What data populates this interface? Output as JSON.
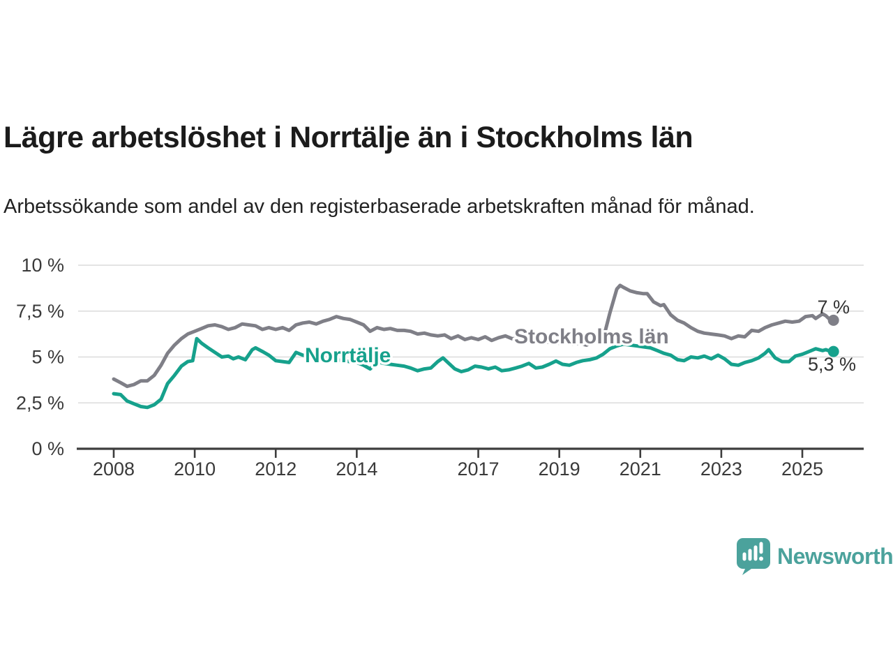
{
  "title": "Lägre arbetslöshet i Norrtälje än i Stockholms län",
  "subtitle": "Arbetssökande som andel av den registerbaserade arbetskraften månad för månad.",
  "branding": {
    "logo_text": "Newsworthy",
    "logo_icon": "speech-bubble-bar-chart-icon",
    "logo_color": "#4ba29c"
  },
  "chart_data": {
    "type": "line",
    "title": "Lägre arbetslöshet i Norrtälje än i Stockholms län",
    "subtitle": "Arbetssökande som andel av den registerbaserade arbetskraften månad för månad.",
    "x_unit": "decimal_year_monthly",
    "ylim": [
      0,
      10
    ],
    "xlim": [
      2007.9,
      2026.3
    ],
    "grid": "horizontal",
    "legend_position": "inline-labels-on-lines",
    "yticks": [
      {
        "value": 0,
        "label": "0 %"
      },
      {
        "value": 2.5,
        "label": "2,5 %"
      },
      {
        "value": 5,
        "label": "5 %"
      },
      {
        "value": 7.5,
        "label": "7,5 %"
      },
      {
        "value": 10,
        "label": "10 %"
      }
    ],
    "xticks": [
      {
        "value": 2008,
        "label": "2008"
      },
      {
        "value": 2010,
        "label": "2010"
      },
      {
        "value": 2012,
        "label": "2012"
      },
      {
        "value": 2014,
        "label": "2014"
      },
      {
        "value": 2017,
        "label": "2017"
      },
      {
        "value": 2019,
        "label": "2019"
      },
      {
        "value": 2021,
        "label": "2021"
      },
      {
        "value": 2023,
        "label": "2023"
      },
      {
        "value": 2025,
        "label": "2025"
      }
    ],
    "series": [
      {
        "name": "Stockholms län",
        "color": "#7f7f87",
        "end_value": 7.0,
        "end_label": "7 %",
        "points": [
          [
            2008.0,
            3.8
          ],
          [
            2008.17,
            3.6
          ],
          [
            2008.33,
            3.4
          ],
          [
            2008.5,
            3.5
          ],
          [
            2008.67,
            3.7
          ],
          [
            2008.83,
            3.7
          ],
          [
            2009.0,
            4.0
          ],
          [
            2009.17,
            4.55
          ],
          [
            2009.33,
            5.2
          ],
          [
            2009.5,
            5.65
          ],
          [
            2009.67,
            6.0
          ],
          [
            2009.83,
            6.25
          ],
          [
            2010.0,
            6.4
          ],
          [
            2010.17,
            6.55
          ],
          [
            2010.33,
            6.7
          ],
          [
            2010.5,
            6.75
          ],
          [
            2010.67,
            6.65
          ],
          [
            2010.83,
            6.5
          ],
          [
            2011.0,
            6.6
          ],
          [
            2011.17,
            6.8
          ],
          [
            2011.33,
            6.75
          ],
          [
            2011.5,
            6.7
          ],
          [
            2011.67,
            6.5
          ],
          [
            2011.83,
            6.6
          ],
          [
            2012.0,
            6.5
          ],
          [
            2012.17,
            6.6
          ],
          [
            2012.33,
            6.45
          ],
          [
            2012.5,
            6.75
          ],
          [
            2012.67,
            6.85
          ],
          [
            2012.83,
            6.9
          ],
          [
            2013.0,
            6.8
          ],
          [
            2013.17,
            6.95
          ],
          [
            2013.33,
            7.05
          ],
          [
            2013.5,
            7.2
          ],
          [
            2013.67,
            7.1
          ],
          [
            2013.83,
            7.05
          ],
          [
            2014.0,
            6.9
          ],
          [
            2014.17,
            6.75
          ],
          [
            2014.33,
            6.4
          ],
          [
            2014.5,
            6.6
          ],
          [
            2014.67,
            6.5
          ],
          [
            2014.83,
            6.55
          ],
          [
            2015.0,
            6.45
          ],
          [
            2015.17,
            6.45
          ],
          [
            2015.33,
            6.4
          ],
          [
            2015.5,
            6.25
          ],
          [
            2015.67,
            6.3
          ],
          [
            2015.83,
            6.2
          ],
          [
            2016.0,
            6.15
          ],
          [
            2016.17,
            6.2
          ],
          [
            2016.33,
            6.0
          ],
          [
            2016.5,
            6.15
          ],
          [
            2016.67,
            5.95
          ],
          [
            2016.83,
            6.05
          ],
          [
            2017.0,
            5.95
          ],
          [
            2017.17,
            6.1
          ],
          [
            2017.33,
            5.9
          ],
          [
            2017.5,
            6.05
          ],
          [
            2017.67,
            6.15
          ],
          [
            2017.83,
            6.0
          ],
          [
            2018.0,
            6.0
          ],
          [
            2018.17,
            5.9
          ],
          [
            2018.33,
            5.85
          ],
          [
            2018.5,
            5.9
          ],
          [
            2018.67,
            5.8
          ],
          [
            2018.83,
            5.85
          ],
          [
            2019.0,
            5.75
          ],
          [
            2019.17,
            5.8
          ],
          [
            2019.33,
            5.7
          ],
          [
            2019.5,
            5.75
          ],
          [
            2019.67,
            5.65
          ],
          [
            2019.83,
            5.8
          ],
          [
            2020.0,
            5.9
          ],
          [
            2020.08,
            5.95
          ],
          [
            2020.25,
            7.4
          ],
          [
            2020.42,
            8.7
          ],
          [
            2020.5,
            8.9
          ],
          [
            2020.58,
            8.8
          ],
          [
            2020.75,
            8.6
          ],
          [
            2020.92,
            8.5
          ],
          [
            2021.08,
            8.45
          ],
          [
            2021.17,
            8.45
          ],
          [
            2021.33,
            8.0
          ],
          [
            2021.5,
            7.8
          ],
          [
            2021.58,
            7.85
          ],
          [
            2021.75,
            7.3
          ],
          [
            2021.92,
            7.0
          ],
          [
            2022.08,
            6.85
          ],
          [
            2022.25,
            6.6
          ],
          [
            2022.42,
            6.4
          ],
          [
            2022.58,
            6.3
          ],
          [
            2022.75,
            6.25
          ],
          [
            2022.92,
            6.2
          ],
          [
            2023.08,
            6.15
          ],
          [
            2023.25,
            6.0
          ],
          [
            2023.42,
            6.15
          ],
          [
            2023.58,
            6.1
          ],
          [
            2023.75,
            6.45
          ],
          [
            2023.92,
            6.4
          ],
          [
            2024.08,
            6.6
          ],
          [
            2024.25,
            6.75
          ],
          [
            2024.42,
            6.85
          ],
          [
            2024.58,
            6.95
          ],
          [
            2024.75,
            6.9
          ],
          [
            2024.92,
            6.95
          ],
          [
            2025.08,
            7.2
          ],
          [
            2025.25,
            7.25
          ],
          [
            2025.33,
            7.1
          ],
          [
            2025.5,
            7.35
          ],
          [
            2025.58,
            7.25
          ],
          [
            2025.7,
            7.0
          ]
        ]
      },
      {
        "name": "Norrtälje",
        "color": "#16a18c",
        "end_value": 5.3,
        "end_label": "5,3 %",
        "points": [
          [
            2008.0,
            3.0
          ],
          [
            2008.17,
            2.95
          ],
          [
            2008.33,
            2.6
          ],
          [
            2008.5,
            2.45
          ],
          [
            2008.67,
            2.3
          ],
          [
            2008.83,
            2.25
          ],
          [
            2009.0,
            2.4
          ],
          [
            2009.17,
            2.7
          ],
          [
            2009.33,
            3.55
          ],
          [
            2009.5,
            4.0
          ],
          [
            2009.67,
            4.5
          ],
          [
            2009.83,
            4.75
          ],
          [
            2009.95,
            4.8
          ],
          [
            2010.05,
            6.0
          ],
          [
            2010.17,
            5.75
          ],
          [
            2010.33,
            5.5
          ],
          [
            2010.5,
            5.25
          ],
          [
            2010.67,
            5.0
          ],
          [
            2010.83,
            5.05
          ],
          [
            2010.95,
            4.9
          ],
          [
            2011.08,
            5.0
          ],
          [
            2011.25,
            4.85
          ],
          [
            2011.42,
            5.4
          ],
          [
            2011.5,
            5.5
          ],
          [
            2011.67,
            5.3
          ],
          [
            2011.83,
            5.1
          ],
          [
            2012.0,
            4.8
          ],
          [
            2012.17,
            4.75
          ],
          [
            2012.33,
            4.7
          ],
          [
            2012.5,
            5.25
          ],
          [
            2012.67,
            5.1
          ],
          [
            2012.83,
            5.0
          ],
          [
            2013.0,
            4.9
          ],
          [
            2013.17,
            5.05
          ],
          [
            2013.33,
            4.95
          ],
          [
            2013.5,
            4.85
          ],
          [
            2013.67,
            4.8
          ],
          [
            2013.83,
            4.75
          ],
          [
            2014.0,
            4.7
          ],
          [
            2014.17,
            4.55
          ],
          [
            2014.33,
            4.35
          ],
          [
            2014.5,
            4.75
          ],
          [
            2014.67,
            4.65
          ],
          [
            2014.83,
            4.6
          ],
          [
            2015.0,
            4.55
          ],
          [
            2015.17,
            4.5
          ],
          [
            2015.33,
            4.4
          ],
          [
            2015.5,
            4.25
          ],
          [
            2015.67,
            4.35
          ],
          [
            2015.83,
            4.4
          ],
          [
            2016.0,
            4.75
          ],
          [
            2016.13,
            4.95
          ],
          [
            2016.25,
            4.7
          ],
          [
            2016.42,
            4.35
          ],
          [
            2016.58,
            4.2
          ],
          [
            2016.75,
            4.3
          ],
          [
            2016.92,
            4.5
          ],
          [
            2017.08,
            4.45
          ],
          [
            2017.25,
            4.35
          ],
          [
            2017.42,
            4.45
          ],
          [
            2017.58,
            4.25
          ],
          [
            2017.75,
            4.3
          ],
          [
            2017.92,
            4.4
          ],
          [
            2018.08,
            4.5
          ],
          [
            2018.25,
            4.65
          ],
          [
            2018.42,
            4.4
          ],
          [
            2018.58,
            4.45
          ],
          [
            2018.75,
            4.6
          ],
          [
            2018.92,
            4.78
          ],
          [
            2019.08,
            4.6
          ],
          [
            2019.25,
            4.55
          ],
          [
            2019.42,
            4.7
          ],
          [
            2019.58,
            4.8
          ],
          [
            2019.75,
            4.85
          ],
          [
            2019.92,
            4.95
          ],
          [
            2020.08,
            5.15
          ],
          [
            2020.25,
            5.45
          ],
          [
            2020.42,
            5.6
          ],
          [
            2020.58,
            5.7
          ],
          [
            2020.75,
            5.65
          ],
          [
            2020.92,
            5.6
          ],
          [
            2021.08,
            5.55
          ],
          [
            2021.25,
            5.5
          ],
          [
            2021.42,
            5.35
          ],
          [
            2021.58,
            5.2
          ],
          [
            2021.75,
            5.1
          ],
          [
            2021.92,
            4.85
          ],
          [
            2022.08,
            4.8
          ],
          [
            2022.25,
            5.0
          ],
          [
            2022.42,
            4.95
          ],
          [
            2022.58,
            5.05
          ],
          [
            2022.75,
            4.9
          ],
          [
            2022.92,
            5.1
          ],
          [
            2023.08,
            4.9
          ],
          [
            2023.25,
            4.6
          ],
          [
            2023.42,
            4.55
          ],
          [
            2023.58,
            4.7
          ],
          [
            2023.75,
            4.8
          ],
          [
            2023.92,
            4.95
          ],
          [
            2024.08,
            5.2
          ],
          [
            2024.17,
            5.4
          ],
          [
            2024.33,
            4.95
          ],
          [
            2024.5,
            4.75
          ],
          [
            2024.67,
            4.75
          ],
          [
            2024.83,
            5.05
          ],
          [
            2025.0,
            5.15
          ],
          [
            2025.17,
            5.3
          ],
          [
            2025.33,
            5.45
          ],
          [
            2025.5,
            5.35
          ],
          [
            2025.58,
            5.4
          ],
          [
            2025.7,
            5.3
          ]
        ]
      }
    ],
    "colors": {
      "gridline": "#dbdbdb",
      "axis": "#3d3d3d",
      "tick_text": "#3a3a3a",
      "value_label_text": "#333333"
    }
  }
}
